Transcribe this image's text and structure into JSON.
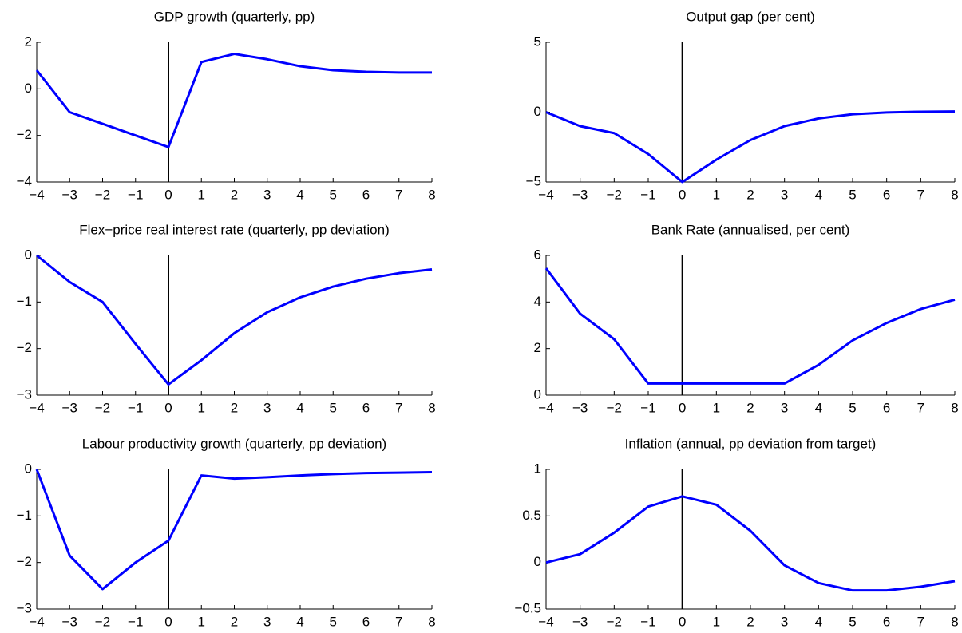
{
  "chart_data": [
    {
      "type": "line",
      "title": "GDP growth (quarterly, pp)",
      "color": "#0000ff",
      "vline": 0,
      "x": [
        -4,
        -3,
        -2,
        -1,
        0,
        1,
        2,
        3,
        4,
        5,
        6,
        7,
        8
      ],
      "values": [
        0.8,
        -1,
        -1.5,
        -2,
        -2.5,
        1.15,
        1.5,
        1.27,
        0.97,
        0.8,
        0.73,
        0.7,
        0.7
      ],
      "xlim": [
        -4,
        8
      ],
      "ylim": [
        -4,
        2
      ],
      "xticks": [
        {
          "value": -4,
          "label": "−4"
        },
        {
          "value": -3,
          "label": "−3"
        },
        {
          "value": -2,
          "label": "−2"
        },
        {
          "value": -1,
          "label": "−1"
        },
        0,
        1,
        2,
        3,
        4,
        5,
        6,
        7,
        8
      ],
      "yticks": [
        {
          "value": -4,
          "label": "−4"
        },
        {
          "value": -2,
          "label": "−2"
        },
        0,
        2
      ]
    },
    {
      "type": "line",
      "title": "Output gap (per cent)",
      "color": "#0000ff",
      "vline": 0,
      "x": [
        -4,
        -3,
        -2,
        -1,
        0,
        1,
        2,
        3,
        4,
        5,
        6,
        7,
        8
      ],
      "values": [
        0,
        -1,
        -1.5,
        -3,
        -5,
        -3.4,
        -2,
        -1,
        -0.45,
        -0.15,
        -0.02,
        0.03,
        0.05
      ],
      "xlim": [
        -4,
        8
      ],
      "ylim": [
        -5,
        5
      ],
      "xticks": [
        {
          "value": -4,
          "label": "−4"
        },
        {
          "value": -3,
          "label": "−3"
        },
        {
          "value": -2,
          "label": "−2"
        },
        {
          "value": -1,
          "label": "−1"
        },
        0,
        1,
        2,
        3,
        4,
        5,
        6,
        7,
        8
      ],
      "yticks": [
        {
          "value": -5,
          "label": "−5"
        },
        0,
        5
      ]
    },
    {
      "type": "line",
      "title": "Flex−price real interest rate (quarterly, pp deviation)",
      "color": "#0000ff",
      "vline": 0,
      "x": [
        -4,
        -3,
        -2,
        -1,
        0,
        1,
        2,
        3,
        4,
        5,
        6,
        7,
        8
      ],
      "values": [
        0,
        -0.57,
        -1,
        -1.9,
        -2.77,
        -2.25,
        -1.67,
        -1.22,
        -0.9,
        -0.67,
        -0.5,
        -0.38,
        -0.3
      ],
      "xlim": [
        -4,
        8
      ],
      "ylim": [
        -3,
        0
      ],
      "xticks": [
        {
          "value": -4,
          "label": "−4"
        },
        {
          "value": -3,
          "label": "−3"
        },
        {
          "value": -2,
          "label": "−2"
        },
        {
          "value": -1,
          "label": "−1"
        },
        0,
        1,
        2,
        3,
        4,
        5,
        6,
        7,
        8
      ],
      "yticks": [
        {
          "value": -3,
          "label": "−3"
        },
        {
          "value": -2,
          "label": "−2"
        },
        {
          "value": -1,
          "label": "−1"
        },
        0
      ]
    },
    {
      "type": "line",
      "title": "Bank Rate (annualised, per cent)",
      "color": "#0000ff",
      "vline": 0,
      "x": [
        -4,
        -3,
        -2,
        -1,
        0,
        1,
        2,
        3,
        4,
        5,
        6,
        7,
        8
      ],
      "values": [
        5.45,
        3.5,
        2.4,
        0.5,
        0.5,
        0.5,
        0.5,
        0.5,
        1.3,
        2.35,
        3.1,
        3.7,
        4.1
      ],
      "xlim": [
        -4,
        8
      ],
      "ylim": [
        0,
        6
      ],
      "xticks": [
        {
          "value": -4,
          "label": "−4"
        },
        {
          "value": -3,
          "label": "−3"
        },
        {
          "value": -2,
          "label": "−2"
        },
        {
          "value": -1,
          "label": "−1"
        },
        0,
        1,
        2,
        3,
        4,
        5,
        6,
        7,
        8
      ],
      "yticks": [
        0,
        2,
        4,
        6
      ]
    },
    {
      "type": "line",
      "title": "Labour productivity growth (quarterly, pp deviation)",
      "color": "#0000ff",
      "vline": 0,
      "x": [
        -4,
        -3,
        -2,
        -1,
        0,
        1,
        2,
        3,
        4,
        5,
        6,
        7,
        8
      ],
      "values": [
        0,
        -1.85,
        -2.57,
        -2,
        -1.53,
        -0.13,
        -0.2,
        -0.17,
        -0.13,
        -0.1,
        -0.08,
        -0.07,
        -0.06
      ],
      "xlim": [
        -4,
        8
      ],
      "ylim": [
        -3,
        0
      ],
      "xticks": [
        {
          "value": -4,
          "label": "−4"
        },
        {
          "value": -3,
          "label": "−3"
        },
        {
          "value": -2,
          "label": "−2"
        },
        {
          "value": -1,
          "label": "−1"
        },
        0,
        1,
        2,
        3,
        4,
        5,
        6,
        7,
        8
      ],
      "yticks": [
        {
          "value": -3,
          "label": "−3"
        },
        {
          "value": -2,
          "label": "−2"
        },
        {
          "value": -1,
          "label": "−1"
        },
        0
      ]
    },
    {
      "type": "line",
      "title": "Inflation (annual, pp deviation from target)",
      "color": "#0000ff",
      "vline": 0,
      "x": [
        -4,
        -3,
        -2,
        -1,
        0,
        1,
        2,
        3,
        4,
        5,
        6,
        7,
        8
      ],
      "values": [
        0,
        0.09,
        0.32,
        0.6,
        0.71,
        0.62,
        0.34,
        -0.03,
        -0.22,
        -0.3,
        -0.3,
        -0.26,
        -0.2
      ],
      "xlim": [
        -4,
        8
      ],
      "ylim": [
        -0.5,
        1
      ],
      "xticks": [
        {
          "value": -4,
          "label": "−4"
        },
        {
          "value": -3,
          "label": "−3"
        },
        {
          "value": -2,
          "label": "−2"
        },
        {
          "value": -1,
          "label": "−1"
        },
        0,
        1,
        2,
        3,
        4,
        5,
        6,
        7,
        8
      ],
      "yticks": [
        {
          "value": -0.5,
          "label": "−0.5"
        },
        0,
        0.5,
        1
      ]
    }
  ]
}
